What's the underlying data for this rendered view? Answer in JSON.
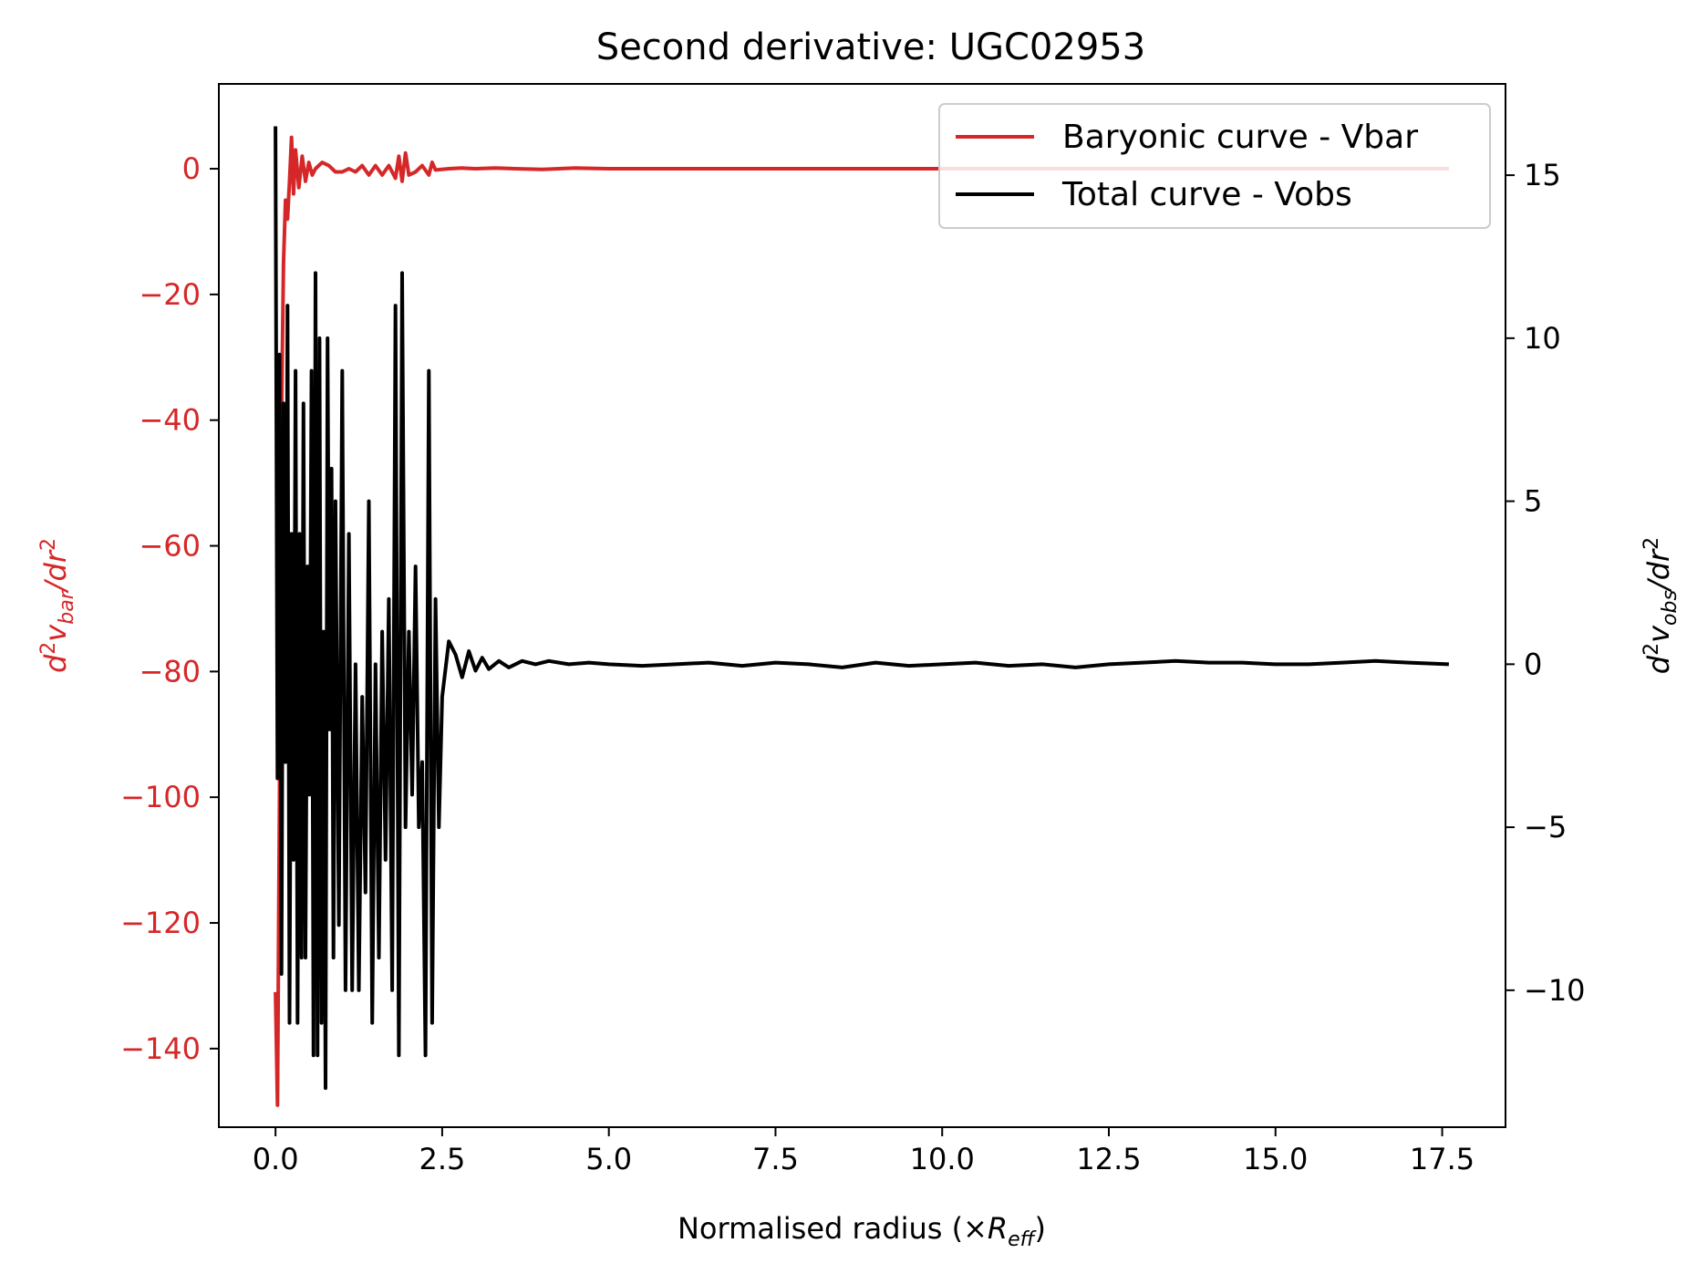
{
  "chart_data": {
    "type": "line",
    "title": "Second derivative: UGC02953",
    "xlabel": "Normalised radius (×R_eff)",
    "ylabel_left": "d²v_bar/dr²",
    "ylabel_right": "d²v_obs/dr²",
    "xlim": [
      -0.85,
      18.45
    ],
    "ylim_left": [
      -152.5,
      13.5
    ],
    "ylim_right": [
      -14.2,
      17.8
    ],
    "x_ticks": [
      "0.0",
      "2.5",
      "5.0",
      "7.5",
      "10.0",
      "12.5",
      "15.0",
      "17.5"
    ],
    "y_left_ticks": [
      "0",
      "−20",
      "−40",
      "−60",
      "−80",
      "−100",
      "−120",
      "−140"
    ],
    "y_right_ticks": [
      "15",
      "10",
      "5",
      "0",
      "−5",
      "−10"
    ],
    "grid": false,
    "legend_position": "upper right",
    "colors": {
      "vbar": "#d62728",
      "vobs": "#000000",
      "left_axis": "#d62728",
      "right_axis": "#000000"
    },
    "series": [
      {
        "name": "Baryonic curve - Vbar",
        "axis": "left",
        "x": [
          0.0,
          0.03,
          0.06,
          0.09,
          0.12,
          0.15,
          0.18,
          0.21,
          0.24,
          0.27,
          0.3,
          0.35,
          0.4,
          0.45,
          0.5,
          0.55,
          0.6,
          0.7,
          0.8,
          0.9,
          1.0,
          1.1,
          1.2,
          1.3,
          1.4,
          1.5,
          1.6,
          1.7,
          1.8,
          1.85,
          1.9,
          1.95,
          2.0,
          2.1,
          2.2,
          2.3,
          2.35,
          2.4,
          2.6,
          2.8,
          3.0,
          3.3,
          3.6,
          4.0,
          4.5,
          5.0,
          6.0,
          7.0,
          8.0,
          9.0,
          10.0,
          11.0,
          12.0,
          13.0,
          14.0,
          15.0,
          16.0,
          17.0,
          17.6
        ],
        "values": [
          -131,
          -149,
          -100,
          -40,
          -15,
          -5,
          -8,
          -2,
          5,
          -4,
          3,
          -3,
          2,
          -2,
          1,
          -1,
          0,
          1,
          0.5,
          -0.5,
          -0.5,
          0,
          -0.5,
          0.5,
          -1,
          0.5,
          -1,
          0.5,
          -1.5,
          2,
          -2,
          2.5,
          -1,
          -0.5,
          0.5,
          -1,
          1,
          -0.2,
          0,
          0.1,
          0,
          0.1,
          0,
          -0.1,
          0.1,
          0,
          0,
          0,
          0,
          0,
          0,
          0,
          0,
          0,
          0,
          0,
          0,
          0,
          0
        ]
      },
      {
        "name": "Total curve - Vobs",
        "axis": "right",
        "x": [
          0.0,
          0.03,
          0.06,
          0.09,
          0.12,
          0.15,
          0.18,
          0.21,
          0.24,
          0.27,
          0.3,
          0.33,
          0.36,
          0.39,
          0.42,
          0.45,
          0.48,
          0.51,
          0.54,
          0.57,
          0.6,
          0.63,
          0.66,
          0.69,
          0.72,
          0.75,
          0.78,
          0.81,
          0.84,
          0.87,
          0.9,
          0.95,
          1.0,
          1.05,
          1.1,
          1.15,
          1.2,
          1.25,
          1.3,
          1.35,
          1.4,
          1.45,
          1.5,
          1.55,
          1.6,
          1.65,
          1.7,
          1.75,
          1.8,
          1.85,
          1.9,
          1.95,
          2.0,
          2.05,
          2.1,
          2.15,
          2.2,
          2.25,
          2.3,
          2.35,
          2.4,
          2.45,
          2.5,
          2.6,
          2.7,
          2.8,
          2.9,
          3.0,
          3.1,
          3.2,
          3.35,
          3.5,
          3.7,
          3.9,
          4.1,
          4.4,
          4.7,
          5.0,
          5.5,
          6.0,
          6.5,
          7.0,
          7.5,
          8.0,
          8.5,
          9.0,
          9.5,
          10.0,
          10.5,
          11.0,
          11.5,
          12.0,
          12.5,
          13.0,
          13.5,
          14.0,
          14.5,
          15.0,
          15.5,
          16.0,
          16.5,
          17.0,
          17.6
        ],
        "values": [
          16.5,
          -3.5,
          9.5,
          -9.5,
          8,
          -3,
          11,
          -11,
          4,
          -6,
          9,
          -11,
          4,
          -9,
          8,
          -9,
          3,
          -4,
          9,
          -12,
          12,
          -12,
          10,
          -11,
          1,
          -13,
          10,
          -2,
          6,
          -9,
          5,
          -8,
          9,
          -10,
          4,
          -10,
          0,
          -10,
          -1,
          -7,
          5,
          -11,
          0,
          -9,
          1,
          -6,
          2,
          -10,
          11,
          -12,
          12,
          -5,
          1,
          -4,
          3,
          -5,
          -3,
          -12,
          9,
          -11,
          2,
          -5,
          -1,
          0.7,
          0.3,
          -0.4,
          0.4,
          -0.2,
          0.2,
          -0.15,
          0.1,
          -0.1,
          0.1,
          0,
          0.1,
          0,
          0.05,
          0,
          -0.05,
          0,
          0.05,
          -0.05,
          0.05,
          0,
          -0.1,
          0.05,
          -0.05,
          0,
          0.05,
          -0.05,
          0,
          -0.1,
          0,
          0.05,
          0.1,
          0.05,
          0.05,
          0,
          0,
          0.05,
          0.1,
          0.05,
          0
        ]
      }
    ]
  }
}
